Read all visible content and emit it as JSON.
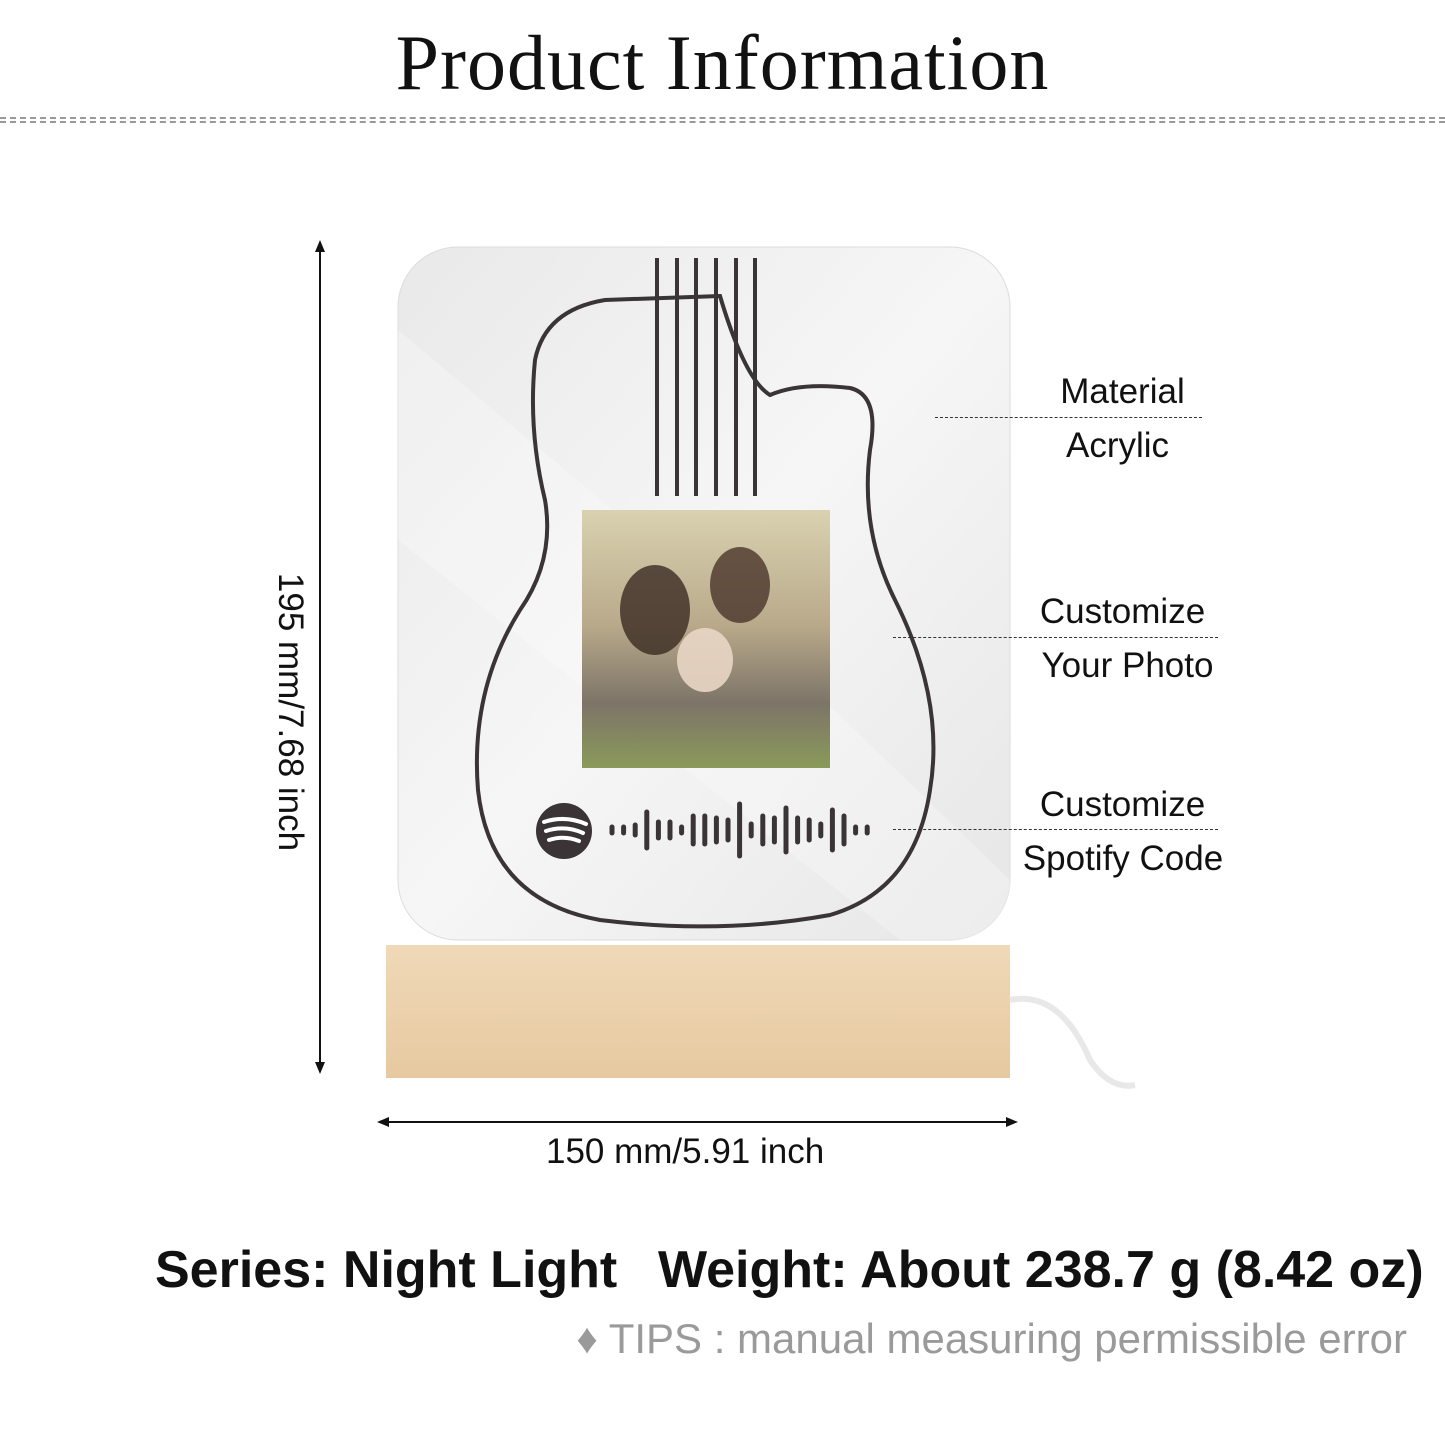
{
  "title": "Product Information",
  "callouts": [
    {
      "top": "Material",
      "bottom": "Acrylic"
    },
    {
      "top": "Customize",
      "bottom": "Your Photo"
    },
    {
      "top": "Customize",
      "bottom": "Spotify Code"
    }
  ],
  "dimensions": {
    "height": "195 mm/7.68 inch",
    "width": "150 mm/5.91 inch"
  },
  "specs": {
    "series": "Series: Night Light",
    "weight": "Weight: About 238.7 g (8.42 oz)"
  },
  "tips": "♦ TIPS : manual measuring permissible error",
  "colors": {
    "wood": "#ecd3b0",
    "acrylic": "#eeeeee",
    "outline": "#3a3436"
  },
  "icons": [
    "spotify-icon",
    "guitar-outline",
    "dimension-arrow"
  ]
}
